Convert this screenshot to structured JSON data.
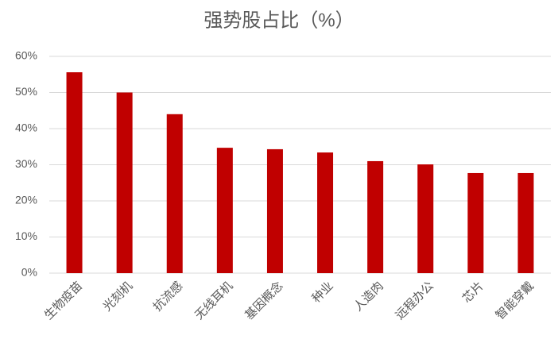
{
  "chart_data": {
    "type": "bar",
    "title": "强势股占比（%）",
    "categories": [
      "生物疫苗",
      "光刻机",
      "抗流感",
      "无线耳机",
      "基因概念",
      "种业",
      "人造肉",
      "远程办公",
      "芯片",
      "智能穿戴"
    ],
    "values": [
      55.6,
      50,
      44,
      34.7,
      34.3,
      33.4,
      31,
      30.1,
      27.7,
      27.7
    ],
    "color": "#c00000",
    "ylim": [
      0,
      60
    ],
    "yticks": [
      {
        "value": 0,
        "label": "0%"
      },
      {
        "value": 10,
        "label": "10%"
      },
      {
        "value": 20,
        "label": "20%"
      },
      {
        "value": 30,
        "label": "30%"
      },
      {
        "value": 40,
        "label": "40%"
      },
      {
        "value": 50,
        "label": "50%"
      },
      {
        "value": 60,
        "label": "60%"
      }
    ],
    "grid": true
  }
}
